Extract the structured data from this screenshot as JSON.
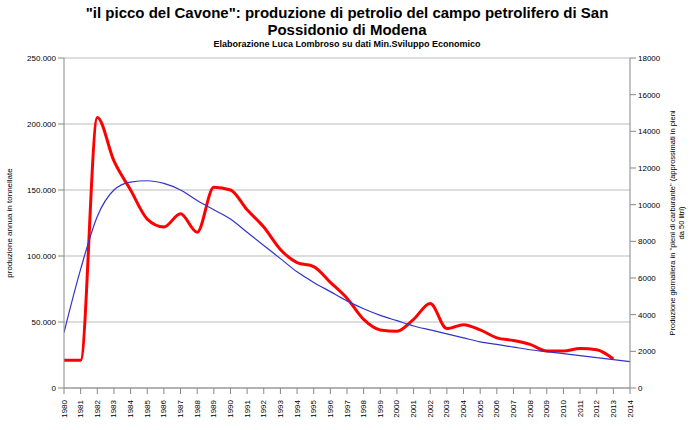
{
  "chart_data": {
    "type": "line",
    "title": "\"il picco del Cavone\": produzione di petrolio del campo petrolifero di  San Possidonio di Modena",
    "subtitle": "Elaborazione Luca Lombroso su dati Min.Sviluppo Economico",
    "ylabel": "produzione annua in tonnellate",
    "y2label": "Produzione giornaliera in \"pieni di carburante\" (approssimati in pieni da 50 litri)",
    "x": [
      1980,
      1981,
      1982,
      1983,
      1984,
      1985,
      1986,
      1987,
      1988,
      1989,
      1990,
      1991,
      1992,
      1993,
      1994,
      1995,
      1996,
      1997,
      1998,
      1999,
      2000,
      2001,
      2002,
      2003,
      2004,
      2005,
      2006,
      2007,
      2008,
      2009,
      2010,
      2011,
      2012,
      2013,
      2014
    ],
    "xlim": [
      1980,
      2014
    ],
    "xticks": [
      1980,
      1981,
      1982,
      1983,
      1984,
      1985,
      1986,
      1987,
      1988,
      1989,
      1990,
      1991,
      1992,
      1993,
      1994,
      1995,
      1996,
      1997,
      1998,
      1999,
      2000,
      2001,
      2002,
      2003,
      2004,
      2005,
      2006,
      2007,
      2008,
      2009,
      2010,
      2011,
      2012,
      2013,
      2014
    ],
    "ylim": [
      0,
      250000
    ],
    "yticks": [
      0,
      {
        "value": 50000,
        "label": "50.000"
      },
      {
        "value": 100000,
        "label": "100.000"
      },
      {
        "value": 150000,
        "label": "150.000"
      },
      {
        "value": 200000,
        "label": "200.000"
      },
      {
        "value": 250000,
        "label": "250.000"
      }
    ],
    "y2lim": [
      0,
      18000
    ],
    "y2ticks": [
      0,
      2000,
      4000,
      6000,
      8000,
      10000,
      12000,
      14000,
      16000,
      18000
    ],
    "grid": true,
    "series": [
      {
        "color": "#ff0000",
        "values": [
          21000,
          21000,
          205000,
          172000,
          150000,
          128000,
          122000,
          132000,
          118000,
          152000,
          150000,
          135000,
          122000,
          105000,
          95000,
          92000,
          80000,
          68000,
          52000,
          44000,
          43000,
          52000,
          64000,
          45000,
          48000,
          44000,
          38000,
          36000,
          33000,
          28000,
          28000,
          30000,
          29000,
          22000,
          null
        ]
      },
      {
        "color": "#3333cc",
        "values": [
          42000,
          90000,
          130000,
          150000,
          156000,
          157000,
          155000,
          150000,
          142000,
          135000,
          128000,
          118000,
          108000,
          98000,
          88000,
          80000,
          73000,
          66000,
          60000,
          55000,
          51000,
          47000,
          44000,
          41000,
          38000,
          35000,
          33000,
          31000,
          29000,
          27500,
          26000,
          24500,
          23000,
          21500,
          20000
        ]
      }
    ]
  }
}
